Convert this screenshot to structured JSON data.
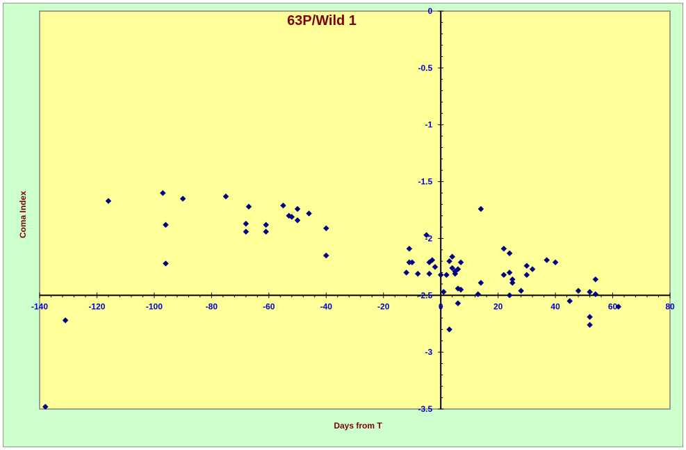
{
  "chart_data": {
    "type": "scatter",
    "title": "63P/Wild 1",
    "xlabel": "Days from T",
    "ylabel": "Coma Index",
    "xlim": [
      -140,
      80
    ],
    "ylim": [
      -3.5,
      0
    ],
    "x_axis_crosses_y_at": -2.5,
    "y_axis_crosses_x_at": 0,
    "x_ticks": [
      -140,
      -120,
      -100,
      -80,
      -60,
      -40,
      -20,
      0,
      20,
      40,
      60,
      80
    ],
    "y_ticks": [
      0,
      -0.5,
      -1,
      -1.5,
      -2,
      -2.5,
      -3,
      -3.5
    ],
    "x_tick_labels": [
      "-140",
      "-120",
      "-100",
      "-80",
      "-60",
      "-40",
      "-20",
      "0",
      "20",
      "40",
      "60",
      "80"
    ],
    "y_tick_labels": [
      "0",
      "-0.5",
      "-1",
      "-1.5",
      "-2",
      "-2.5",
      "-3",
      "-3.5"
    ],
    "grid": false,
    "legend": "none",
    "marker": "diamond",
    "colors": {
      "background": "#ccffcc",
      "plot_area": "#ffff99",
      "marker": "#000080",
      "title": "#800000",
      "ticks": "#0000cc"
    },
    "series": [
      {
        "points": [
          [
            -138,
            -3.48
          ],
          [
            -131,
            -2.72
          ],
          [
            -116,
            -1.67
          ],
          [
            -97,
            -1.6
          ],
          [
            -96,
            -1.88
          ],
          [
            -96,
            -2.22
          ],
          [
            -90,
            -1.65
          ],
          [
            -75,
            -1.63
          ],
          [
            -68,
            -1.94
          ],
          [
            -68,
            -1.87
          ],
          [
            -67,
            -1.72
          ],
          [
            -61,
            -1.88
          ],
          [
            -61,
            -1.94
          ],
          [
            -55,
            -1.71
          ],
          [
            -53,
            -1.8
          ],
          [
            -52,
            -1.81
          ],
          [
            -50,
            -1.74
          ],
          [
            -50,
            -1.84
          ],
          [
            -46,
            -1.78
          ],
          [
            -40,
            -1.91
          ],
          [
            -40,
            -2.15
          ],
          [
            -12,
            -2.3
          ],
          [
            -11,
            -2.09
          ],
          [
            -11,
            -2.21
          ],
          [
            -10,
            -2.21
          ],
          [
            -8,
            -2.31
          ],
          [
            -5,
            -1.97
          ],
          [
            -4,
            -2.21
          ],
          [
            -4,
            -2.31
          ],
          [
            -3,
            -2.19
          ],
          [
            -2,
            -2.25
          ],
          [
            0,
            -2.32
          ],
          [
            1,
            -2.47
          ],
          [
            2,
            -2.32
          ],
          [
            3,
            -2.8
          ],
          [
            3,
            -2.2
          ],
          [
            4,
            -2.16
          ],
          [
            4,
            -2.26
          ],
          [
            5,
            -2.29
          ],
          [
            5,
            -2.31
          ],
          [
            6,
            -2.27
          ],
          [
            6,
            -2.44
          ],
          [
            6,
            -2.57
          ],
          [
            7,
            -2.45
          ],
          [
            7,
            -2.21
          ],
          [
            13,
            -2.49
          ],
          [
            14,
            -1.74
          ],
          [
            14,
            -2.39
          ],
          [
            22,
            -2.09
          ],
          [
            22,
            -2.32
          ],
          [
            24,
            -2.13
          ],
          [
            24,
            -2.3
          ],
          [
            24,
            -2.5
          ],
          [
            25,
            -2.36
          ],
          [
            25,
            -2.39
          ],
          [
            28,
            -2.46
          ],
          [
            30,
            -2.24
          ],
          [
            30,
            -2.32
          ],
          [
            32,
            -2.27
          ],
          [
            37,
            -2.19
          ],
          [
            40,
            -2.21
          ],
          [
            45,
            -2.55
          ],
          [
            48,
            -2.46
          ],
          [
            52,
            -2.47
          ],
          [
            52,
            -2.69
          ],
          [
            52,
            -2.76
          ],
          [
            54,
            -2.49
          ],
          [
            54,
            -2.36
          ],
          [
            62,
            -2.6
          ]
        ]
      }
    ]
  }
}
